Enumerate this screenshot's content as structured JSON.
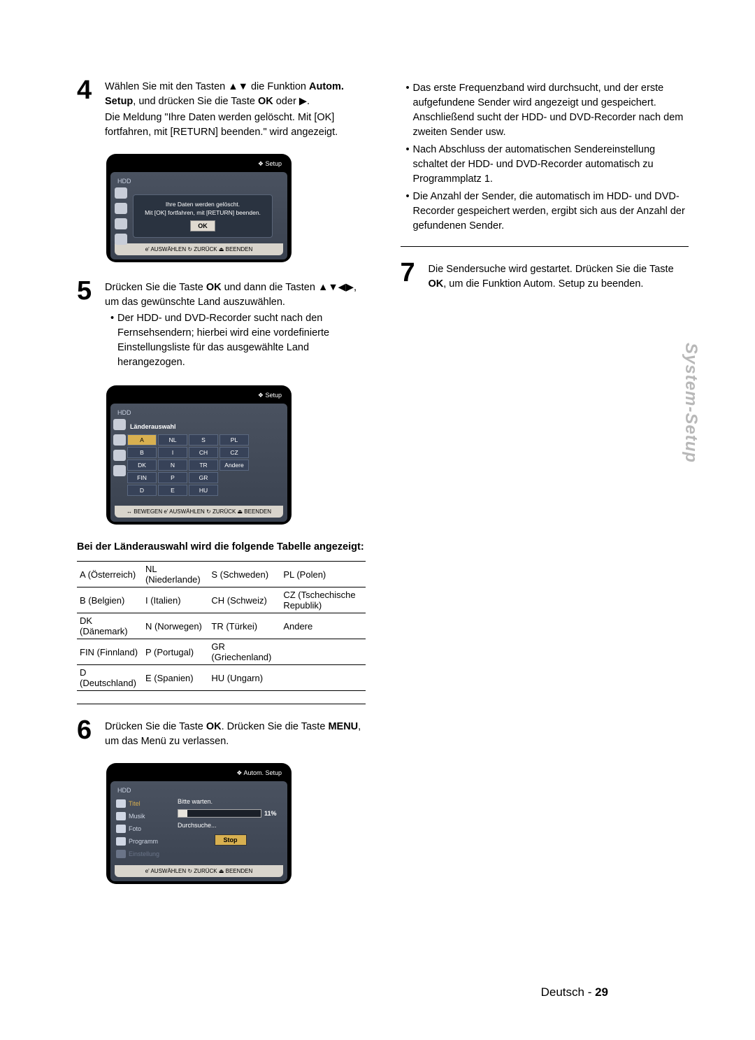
{
  "side_tab": "System-Setup",
  "footer": {
    "lang": "Deutsch",
    "sep": " - ",
    "page": "29"
  },
  "step4": {
    "num": "4",
    "p1a": "Wählen Sie mit den Tasten ",
    "arrows1": "▲▼",
    "p1b": " die Funktion ",
    "autom": "Autom. Setup",
    "p1c": ", und drücken Sie die Taste ",
    "ok": "OK",
    "p1d": " oder ",
    "arrow_r": "▶",
    "dot": ".",
    "p2": "Die Meldung \"Ihre Daten werden gelöscht. Mit [OK] fortfahren, mit [RETURN] beenden.\" wird angezeigt."
  },
  "osd1": {
    "title": "Setup",
    "hdd": "HDD",
    "msg1": "Ihre Daten werden gelöscht.",
    "msg2": "Mit [OK] fortfahren, mit [RETURN] beenden.",
    "ok": "OK",
    "footer": "e' AUSWÄHLEN   ↻ ZURÜCK   ⏏ BEENDEN"
  },
  "step5": {
    "num": "5",
    "p1a": "Drücken Sie die Taste ",
    "ok": "OK",
    "p1b": " und dann die Tasten ",
    "arrows": "▲▼◀▶",
    "p1c": ", um das gewünschte Land auszuwählen.",
    "b1": "Der HDD- und DVD-Recorder sucht nach den Fernsehsendern; hierbei wird eine vordefinierte Einstellungsliste für das ausgewählte Land herangezogen."
  },
  "osd2": {
    "title": "Setup",
    "hdd": "HDD",
    "panel_title": "Länderauswahl",
    "cells": [
      "A",
      "NL",
      "S",
      "PL",
      "B",
      "I",
      "CH",
      "CZ",
      "DK",
      "N",
      "TR",
      "Andere",
      "FIN",
      "P",
      "GR",
      "",
      "D",
      "E",
      "HU",
      ""
    ],
    "sel_index": 0,
    "footer": "↔ BEWEGEN   e' AUSWÄHLEN   ↻ ZURÜCK   ⏏ BEENDEN"
  },
  "table_title": "Bei der Länderauswahl wird die folgende Tabelle angezeigt:",
  "table": {
    "rows": [
      [
        "A (Österreich)",
        "NL (Niederlande)",
        "S (Schweden)",
        "PL (Polen)"
      ],
      [
        "B (Belgien)",
        "I (Italien)",
        "CH (Schweiz)",
        "CZ (Tschechische Republik)"
      ],
      [
        "DK (Dänemark)",
        "N (Norwegen)",
        "TR (Türkei)",
        "Andere"
      ],
      [
        "FIN (Finnland)",
        "P (Portugal)",
        "GR (Griechenland)",
        ""
      ],
      [
        "D (Deutschland)",
        "E (Spanien)",
        "HU (Ungarn)",
        ""
      ]
    ]
  },
  "step6": {
    "num": "6",
    "p1a": "Drücken Sie die Taste ",
    "ok": "OK",
    "p1b": ". Drücken Sie die Taste ",
    "menu": "MENU",
    "p1c": ", um das Menü zu verlassen."
  },
  "osd3": {
    "title": "Autom. Setup",
    "hdd": "HDD",
    "menu": [
      "Titel",
      "Musik",
      "Foto",
      "Programm",
      "Einstellung"
    ],
    "wait": "Bitte warten.",
    "pct": "11%",
    "pct_fill": 11,
    "search": "Durchsuche...",
    "stop": "Stop",
    "footer": "e' AUSWÄHLEN   ↻ ZURÜCK   ⏏ BEENDEN"
  },
  "right_bullets": [
    "Das erste Frequenzband wird durchsucht, und der erste aufgefundene Sender wird angezeigt und gespeichert. Anschließend sucht der HDD- und DVD-Recorder nach dem zweiten Sender usw.",
    "Nach Abschluss der automatischen Sendereinstellung schaltet der HDD- und DVD-Recorder automatisch zu Programmplatz 1.",
    "Die Anzahl der Sender, die automatisch im HDD- und DVD-Recorder gespeichert werden, ergibt sich aus der Anzahl der gefundenen Sender."
  ],
  "step7": {
    "num": "7",
    "p1a": "Die Sendersuche wird gestartet. Drücken Sie die Taste ",
    "ok": "OK",
    "p1b": ", um die Funktion Autom. Setup zu beenden."
  }
}
